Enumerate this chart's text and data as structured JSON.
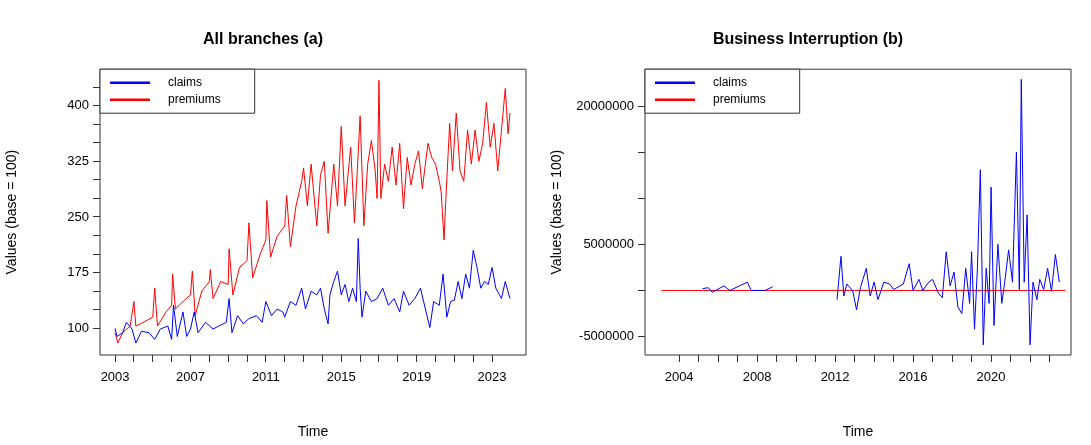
{
  "chart_data": [
    {
      "type": "line",
      "title": "All branches (a)",
      "xlabel": "Time",
      "ylabel": "Values (base = 100)",
      "legend": "top left",
      "xlim": [
        2002.2,
        2024.8
      ],
      "xticks": [
        2003,
        {
          "value": 2004,
          "label": null
        },
        {
          "value": 2005,
          "label": null
        },
        {
          "value": 2006,
          "label": null
        },
        2007,
        {
          "value": 2008,
          "label": null
        },
        {
          "value": 2009,
          "label": null
        },
        {
          "value": 2010,
          "label": null
        },
        2011,
        {
          "value": 2012,
          "label": null
        },
        {
          "value": 2013,
          "label": null
        },
        {
          "value": 2014,
          "label": null
        },
        2015,
        {
          "value": 2016,
          "label": null
        },
        {
          "value": 2017,
          "label": null
        },
        {
          "value": 2018,
          "label": null
        },
        2019,
        {
          "value": 2020,
          "label": null
        },
        {
          "value": 2021,
          "label": null
        },
        {
          "value": 2022,
          "label": null
        },
        2023
      ],
      "ylim": [
        64,
        449
      ],
      "yticks": [
        100,
        {
          "value": 125,
          "label": null
        },
        {
          "value": 150,
          "label": null
        },
        175,
        {
          "value": 200,
          "label": null
        },
        {
          "value": 225,
          "label": null
        },
        250,
        {
          "value": 275,
          "label": null
        },
        {
          "value": 300,
          "label": null
        },
        325,
        {
          "value": 350,
          "label": null
        },
        {
          "value": 375,
          "label": null
        },
        400,
        {
          "value": 425,
          "label": null
        }
      ],
      "series": [
        {
          "name": "claims",
          "color": "#0000ff",
          "x": [
            2003.0,
            2003.1,
            2003.4,
            2003.6,
            2003.9,
            2004.1,
            2004.4,
            2004.8,
            2005.1,
            2005.4,
            2005.8,
            2006.0,
            2006.1,
            2006.3,
            2006.6,
            2006.8,
            2007.0,
            2007.2,
            2007.4,
            2007.8,
            2008.2,
            2008.5,
            2008.9,
            2009.05,
            2009.2,
            2009.5,
            2009.8,
            2010.1,
            2010.5,
            2010.8,
            2011.0,
            2011.3,
            2011.6,
            2011.9,
            2012.0,
            2012.3,
            2012.6,
            2012.9,
            2013.1,
            2013.4,
            2013.7,
            2013.9,
            2014.1,
            2014.3,
            2014.4,
            2014.6,
            2014.8,
            2015.0,
            2015.2,
            2015.4,
            2015.6,
            2015.8,
            2015.9,
            2016.0,
            2016.1,
            2016.3,
            2016.6,
            2016.9,
            2017.2,
            2017.5,
            2017.8,
            2018.1,
            2018.3,
            2018.6,
            2018.9,
            2019.2,
            2019.5,
            2019.7,
            2019.9,
            2020.2,
            2020.4,
            2020.6,
            2020.8,
            2021.0,
            2021.2,
            2021.4,
            2021.6,
            2021.8,
            2022.0,
            2022.2,
            2022.4,
            2022.6,
            2022.8,
            2023.0,
            2023.2,
            2023.5,
            2023.7,
            2023.95
          ],
          "values": [
            100,
            89,
            94,
            108,
            99,
            80,
            96,
            94,
            85,
            99,
            103,
            85,
            131,
            89,
            122,
            89,
            99,
            122,
            94,
            108,
            99,
            103,
            108,
            140,
            94,
            117,
            106,
            113,
            117,
            108,
            136,
            117,
            126,
            122,
            115,
            136,
            131,
            154,
            126,
            150,
            145,
            154,
            126,
            106,
            145,
            163,
            177,
            145,
            159,
            136,
            154,
            136,
            221,
            154,
            115,
            150,
            136,
            140,
            154,
            131,
            140,
            122,
            150,
            131,
            140,
            154,
            122,
            101,
            136,
            131,
            173,
            115,
            136,
            138,
            163,
            140,
            173,
            154,
            205,
            182,
            154,
            163,
            159,
            182,
            154,
            140,
            163,
            140
          ]
        },
        {
          "name": "premiums",
          "color": "#ff0000",
          "x": [
            2003.0,
            2003.15,
            2003.4,
            2003.8,
            2004.0,
            2004.1,
            2004.5,
            2005.0,
            2005.1,
            2005.25,
            2005.7,
            2006.0,
            2006.05,
            2006.2,
            2006.6,
            2007.0,
            2007.1,
            2007.25,
            2007.6,
            2008.0,
            2008.05,
            2008.2,
            2008.6,
            2009.0,
            2009.05,
            2009.25,
            2009.6,
            2010.0,
            2010.1,
            2010.3,
            2010.7,
            2011.0,
            2011.05,
            2011.25,
            2011.6,
            2012.0,
            2012.1,
            2012.3,
            2012.6,
            2012.9,
            2013.0,
            2013.2,
            2013.4,
            2013.7,
            2013.9,
            2014.1,
            2014.3,
            2014.6,
            2014.8,
            2015.0,
            2015.2,
            2015.5,
            2015.7,
            2015.85,
            2016.0,
            2016.2,
            2016.4,
            2016.6,
            2016.8,
            2016.9,
            2017.0,
            2017.1,
            2017.3,
            2017.5,
            2017.7,
            2017.9,
            2018.1,
            2018.3,
            2018.5,
            2018.7,
            2018.9,
            2019.1,
            2019.3,
            2019.6,
            2019.8,
            2020.0,
            2020.2,
            2020.3,
            2020.45,
            2020.55,
            2020.75,
            2020.9,
            2021.1,
            2021.3,
            2021.5,
            2021.7,
            2021.9,
            2022.1,
            2022.3,
            2022.5,
            2022.7,
            2022.9,
            2023.1,
            2023.3,
            2023.5,
            2023.7,
            2023.85,
            2023.95
          ],
          "values": [
            94,
            80,
            94,
            103,
            136,
            103,
            108,
            115,
            154,
            103,
            122,
            131,
            173,
            126,
            136,
            145,
            177,
            117,
            150,
            163,
            179,
            140,
            163,
            159,
            207,
            145,
            182,
            191,
            242,
            168,
            200,
            219,
            272,
            196,
            224,
            238,
            279,
            210,
            265,
            298,
            316,
            265,
            321,
            238,
            307,
            325,
            228,
            321,
            265,
            372,
            265,
            344,
            242,
            312,
            386,
            238,
            321,
            353,
            312,
            275,
            434,
            275,
            321,
            298,
            344,
            293,
            349,
            261,
            330,
            293,
            321,
            339,
            288,
            349,
            330,
            321,
            298,
            284,
            219,
            275,
            376,
            312,
            390,
            312,
            298,
            367,
            321,
            367,
            325,
            349,
            404,
            344,
            376,
            312,
            367,
            423,
            362,
            390
          ]
        }
      ]
    },
    {
      "type": "line",
      "title": "Business Interruption (b)",
      "xlabel": "Time",
      "ylabel": "Values (base = 100)",
      "legend": "top left",
      "xlim": [
        2002.25,
        2024.1
      ],
      "xticks": [
        2004,
        {
          "value": 2005,
          "label": null
        },
        {
          "value": 2006,
          "label": null
        },
        {
          "value": 2007,
          "label": null
        },
        2008,
        {
          "value": 2009,
          "label": null
        },
        {
          "value": 2010,
          "label": null
        },
        {
          "value": 2011,
          "label": null
        },
        2012,
        {
          "value": 2013,
          "label": null
        },
        {
          "value": 2014,
          "label": null
        },
        {
          "value": 2015,
          "label": null
        },
        2016,
        {
          "value": 2017,
          "label": null
        },
        {
          "value": 2018,
          "label": null
        },
        {
          "value": 2019,
          "label": null
        },
        2020,
        {
          "value": 2021,
          "label": null
        },
        {
          "value": 2022,
          "label": null
        },
        {
          "value": 2023,
          "label": null
        }
      ],
      "ylim": [
        -7000000,
        24000000
      ],
      "yticks": [
        -5000000,
        {
          "value": 0,
          "label": null
        },
        5000000,
        {
          "value": 10000000,
          "label": null
        },
        {
          "value": 15000000,
          "label": null
        },
        20000000
      ],
      "series": [
        {
          "name": "claims",
          "color": "#0000ff",
          "x": [
            2005.2,
            2005.5,
            2005.7,
            2006.3,
            2006.6,
            2007.5,
            2007.7,
            2008.4,
            2008.8,
            2009.0,
            2011.4,
            2011.8,
            2012.1,
            2012.3,
            2012.45,
            2012.6,
            2012.9,
            2013.1,
            2013.3,
            2013.6,
            2013.8,
            2014.0,
            2014.2,
            2014.5,
            2014.8,
            2015.0,
            2015.5,
            2015.8,
            2016.0,
            2016.3,
            2016.5,
            2016.8,
            2017.0,
            2017.3,
            2017.5,
            2017.7,
            2017.9,
            2018.1,
            2018.3,
            2018.5,
            2018.7,
            2018.9,
            2019.0,
            2019.15,
            2019.3,
            2019.45,
            2019.6,
            2019.75,
            2019.9,
            2020.0,
            2020.15,
            2020.35,
            2020.55,
            2020.7,
            2020.9,
            2021.1,
            2021.3,
            2021.45,
            2021.55,
            2021.7,
            2021.85,
            2022.0,
            2022.15,
            2022.35,
            2022.5,
            2022.7,
            2022.9,
            2023.1,
            2023.3,
            2023.5
          ],
          "values": [
            200000,
            300000,
            -200000,
            500000,
            0,
            900000,
            0,
            0,
            400000,
            null,
            null,
            null,
            -1000000,
            3700000,
            -600000,
            700000,
            0,
            -2100000,
            300000,
            2400000,
            -600000,
            900000,
            -1000000,
            900000,
            700000,
            100000,
            700000,
            2900000,
            0,
            1200000,
            0,
            900000,
            1200000,
            -300000,
            -800000,
            4200000,
            500000,
            2000000,
            -1800000,
            -2500000,
            2400000,
            -1400000,
            4200000,
            -4200000,
            2400000,
            13100000,
            -5900000,
            2400000,
            -1400000,
            11200000,
            -3800000,
            5000000,
            -1400000,
            900000,
            4400000,
            900000,
            15000000,
            100000,
            22900000,
            900000,
            8200000,
            -5900000,
            900000,
            -1000000,
            1200000,
            100000,
            2400000,
            -100000,
            3900000,
            900000
          ]
        },
        {
          "name": "premiums",
          "color": "#ff0000",
          "x": [
            2003.1,
            2008,
            2013,
            2018,
            2023.8
          ],
          "values": [
            0,
            0,
            0,
            0,
            0
          ]
        }
      ]
    }
  ]
}
